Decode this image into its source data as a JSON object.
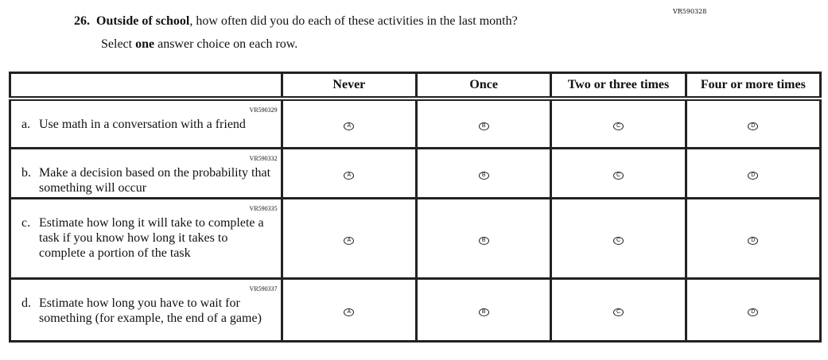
{
  "question": {
    "id": "VR590328",
    "number": "26.",
    "bold_part": "Outside of school",
    "rest": ", how often did you do each of these activities in the last month?",
    "instruction_pre": "Select ",
    "instruction_bold": "one",
    "instruction_post": " answer choice on each row."
  },
  "columns": [
    "Never",
    "Once",
    "Two or three times",
    "Four or more times"
  ],
  "options": [
    "A",
    "B",
    "C",
    "D"
  ],
  "rows": [
    {
      "id": "VR590329",
      "letter": "a.",
      "text": "Use math in a conversation with a friend"
    },
    {
      "id": "VR590332",
      "letter": "b.",
      "text": "Make a decision based on the probability that something will occur"
    },
    {
      "id": "VR590335",
      "letter": "c.",
      "text": "Estimate how long it will take to complete a task if you know how long it takes to complete a portion of the task"
    },
    {
      "id": "VR590337",
      "letter": "d.",
      "text": "Estimate how long you have to wait for something (for example, the end of a game)"
    }
  ]
}
